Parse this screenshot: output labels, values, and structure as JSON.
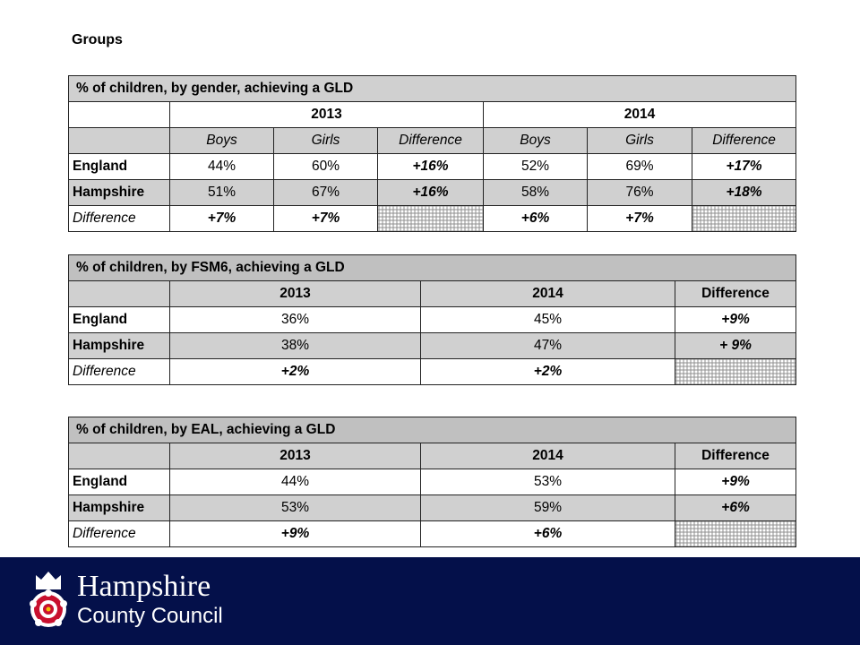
{
  "slide_title": "Groups",
  "gender_table": {
    "caption": "% of children, by gender, achieving a GLD",
    "years": [
      "2013",
      "2014"
    ],
    "subheaders": [
      "Boys",
      "Girls",
      "Difference",
      "Boys",
      "Girls",
      "Difference"
    ],
    "rows": [
      {
        "label": "England",
        "values": [
          "44%",
          "60%",
          "+16%",
          "52%",
          "69%",
          "+17%"
        ]
      },
      {
        "label": "Hampshire",
        "values": [
          "51%",
          "67%",
          "+16%",
          "58%",
          "76%",
          "+18%"
        ]
      },
      {
        "label": "Difference",
        "values": [
          "+7%",
          "+7%",
          "",
          "+6%",
          "+7%",
          ""
        ]
      }
    ]
  },
  "fsm_table": {
    "caption": "% of children, by FSM6, achieving a GLD",
    "headers": [
      "2013",
      "2014",
      "Difference"
    ],
    "rows": [
      {
        "label": "England",
        "values": [
          "36%",
          "45%",
          "+9%"
        ]
      },
      {
        "label": "Hampshire",
        "values": [
          "38%",
          "47%",
          "+ 9%"
        ]
      },
      {
        "label": "Difference",
        "values": [
          "+2%",
          "+2%",
          ""
        ]
      }
    ]
  },
  "eal_table": {
    "caption": "% of children, by EAL, achieving a GLD",
    "headers": [
      "2013",
      "2014",
      "Difference"
    ],
    "rows": [
      {
        "label": "England",
        "values": [
          "44%",
          "53%",
          "+9%"
        ]
      },
      {
        "label": "Hampshire",
        "values": [
          "53%",
          "59%",
          "+6%"
        ]
      },
      {
        "label": "Difference",
        "values": [
          "+9%",
          "+6%",
          ""
        ]
      }
    ]
  },
  "footer": {
    "org_name": "Hampshire",
    "org_sub": "County Council",
    "logo_icon": "hampshire-crest-icon",
    "background": "#04104a"
  }
}
